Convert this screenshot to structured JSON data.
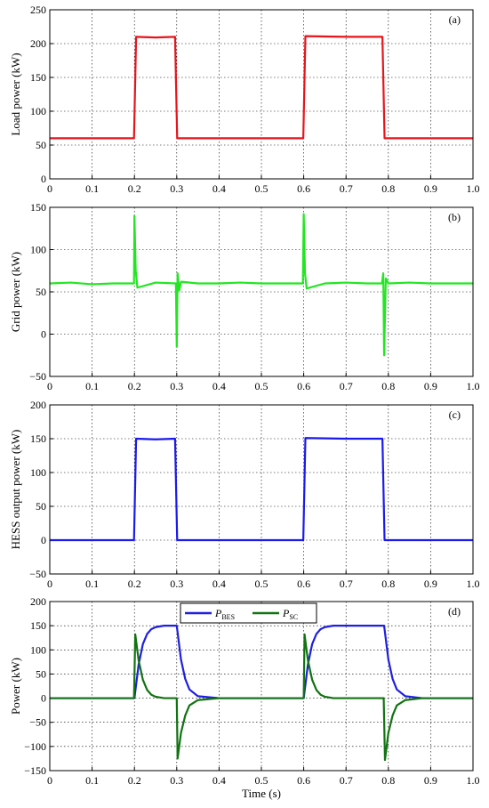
{
  "figure": {
    "xlabel": "Time (s)"
  },
  "chart_data": [
    {
      "type": "line",
      "panel_tag": "(a)",
      "ylabel": "Load power (kW)",
      "xlim": [
        0,
        1.0
      ],
      "ylim": [
        0,
        250
      ],
      "xticks": [
        "0",
        "0.1",
        "0.2",
        "0.3",
        "0.4",
        "0.5",
        "0.6",
        "0.7",
        "0.8",
        "0.9",
        "1.0"
      ],
      "yticks": [
        0,
        50,
        100,
        150,
        200,
        250
      ],
      "grid": true,
      "series": [
        {
          "color": "#e8141b",
          "x": [
            0,
            0.199,
            0.204,
            0.25,
            0.296,
            0.301,
            0.599,
            0.604,
            0.7,
            0.786,
            0.791,
            1.0
          ],
          "y": [
            60,
            60,
            210,
            209,
            210,
            60,
            60,
            211,
            210,
            210,
            60,
            60
          ]
        }
      ]
    },
    {
      "type": "line",
      "panel_tag": "(b)",
      "ylabel": "Grid power (kW)",
      "xlim": [
        0,
        1.0
      ],
      "ylim": [
        -50,
        150
      ],
      "xticks": [
        "0",
        "0.1",
        "0.2",
        "0.3",
        "0.4",
        "0.5",
        "0.6",
        "0.7",
        "0.8",
        "0.9",
        "1.0"
      ],
      "yticks": [
        -50,
        0,
        50,
        100,
        150
      ],
      "grid": true,
      "series": [
        {
          "color": "#22e622",
          "x": [
            0,
            0.05,
            0.1,
            0.15,
            0.199,
            0.2,
            0.203,
            0.207,
            0.25,
            0.298,
            0.3,
            0.302,
            0.306,
            0.31,
            0.35,
            0.4,
            0.45,
            0.5,
            0.55,
            0.598,
            0.6,
            0.603,
            0.607,
            0.65,
            0.7,
            0.75,
            0.785,
            0.788,
            0.79,
            0.794,
            0.8,
            0.85,
            0.9,
            0.95,
            1.0
          ],
          "y": [
            60,
            61,
            59,
            60,
            60,
            140,
            75,
            55,
            61,
            60,
            -15,
            72,
            52,
            62,
            60,
            60,
            61,
            60,
            60,
            60,
            142,
            72,
            54,
            60,
            61,
            60,
            60,
            72,
            -25,
            66,
            60,
            61,
            60,
            60,
            60
          ]
        }
      ]
    },
    {
      "type": "line",
      "panel_tag": "(c)",
      "ylabel": "HESS output power (kW)",
      "xlim": [
        0,
        1.0
      ],
      "ylim": [
        -50,
        200
      ],
      "xticks": [
        "0",
        "0.1",
        "0.2",
        "0.3",
        "0.4",
        "0.5",
        "0.6",
        "0.7",
        "0.8",
        "0.9",
        "1.0"
      ],
      "yticks": [
        -50,
        0,
        50,
        100,
        150,
        200
      ],
      "grid": true,
      "series": [
        {
          "color": "#1a1aee",
          "x": [
            0,
            0.199,
            0.204,
            0.25,
            0.296,
            0.301,
            0.599,
            0.604,
            0.7,
            0.786,
            0.791,
            1.0
          ],
          "y": [
            0,
            0,
            150,
            149,
            150,
            0,
            0,
            151,
            150,
            150,
            0,
            0
          ]
        }
      ]
    },
    {
      "type": "line",
      "panel_tag": "(d)",
      "ylabel": "Power (kW)",
      "xlim": [
        0,
        1.0
      ],
      "ylim": [
        -150,
        200
      ],
      "xticks": [
        "0",
        "0.1",
        "0.2",
        "0.3",
        "0.4",
        "0.5",
        "0.6",
        "0.7",
        "0.8",
        "0.9",
        "1.0"
      ],
      "yticks": [
        -150,
        -100,
        -50,
        0,
        50,
        100,
        150,
        200
      ],
      "grid": true,
      "legend_position": "top-center",
      "series": [
        {
          "name": "P_BES",
          "legend_main": "P",
          "legend_sub": "BES",
          "color": "#1f1fe0",
          "x": [
            0,
            0.2,
            0.21,
            0.22,
            0.23,
            0.24,
            0.25,
            0.27,
            0.3,
            0.31,
            0.32,
            0.33,
            0.35,
            0.4,
            0.6,
            0.61,
            0.62,
            0.63,
            0.64,
            0.65,
            0.67,
            0.79,
            0.8,
            0.81,
            0.82,
            0.84,
            0.88,
            1.0
          ],
          "y": [
            0,
            0,
            70,
            112,
            133,
            143,
            147,
            150,
            150,
            80,
            40,
            18,
            4,
            0,
            0,
            70,
            112,
            133,
            143,
            147,
            150,
            150,
            80,
            40,
            18,
            4,
            0,
            0
          ]
        },
        {
          "name": "P_SC",
          "legend_main": "P",
          "legend_sub": "SC",
          "color": "#127312",
          "x": [
            0,
            0.199,
            0.202,
            0.21,
            0.22,
            0.23,
            0.24,
            0.25,
            0.27,
            0.3,
            0.302,
            0.31,
            0.32,
            0.33,
            0.35,
            0.4,
            0.6,
            0.602,
            0.61,
            0.62,
            0.63,
            0.64,
            0.65,
            0.67,
            0.7,
            0.789,
            0.792,
            0.8,
            0.81,
            0.82,
            0.84,
            0.88,
            1.0
          ],
          "y": [
            0,
            0,
            132,
            78,
            38,
            17,
            7,
            3,
            0,
            0,
            -125,
            -72,
            -36,
            -15,
            -4,
            0,
            0,
            132,
            78,
            38,
            17,
            7,
            3,
            0,
            0,
            0,
            -128,
            -72,
            -36,
            -15,
            -4,
            0,
            0
          ]
        }
      ]
    }
  ]
}
